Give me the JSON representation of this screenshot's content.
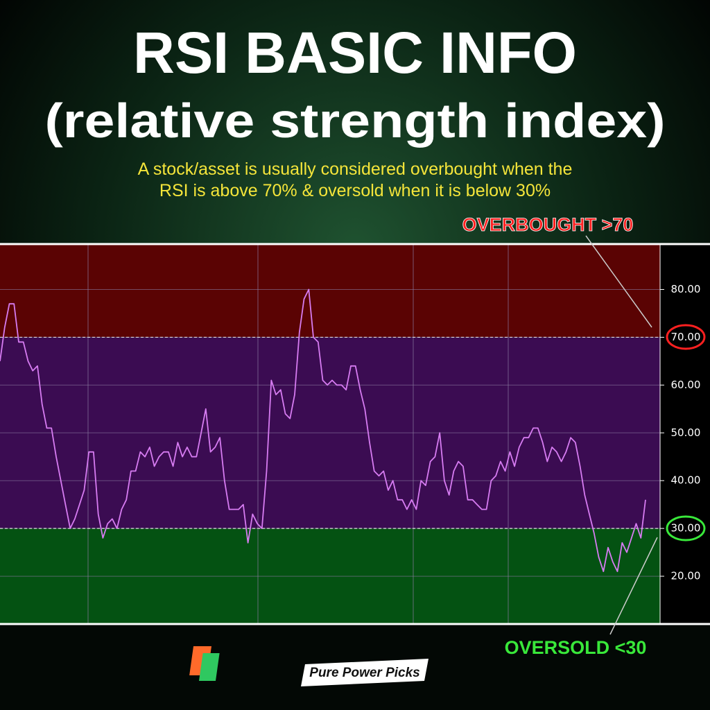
{
  "chart_data": {
    "type": "line",
    "title": "RSI BASIC INFO",
    "subtitle": "(relative strength index)",
    "description": [
      "A stock/asset is usually considered overbought when the",
      "RSI is above 70% & oversold when it is below 30%"
    ],
    "annotations": {
      "overbought": "OVERBOUGHT >70",
      "oversold": "OVERSOLD <30"
    },
    "brand": "Pure Power Picks",
    "ylim": [
      10,
      89.5
    ],
    "yticks": [
      {
        "value": 20,
        "label": "20.00"
      },
      {
        "value": 30,
        "label": "30.00"
      },
      {
        "value": 40,
        "label": "40.00"
      },
      {
        "value": 50,
        "label": "50.00"
      },
      {
        "value": 60,
        "label": "60.00"
      },
      {
        "value": 70,
        "label": "70.00"
      },
      {
        "value": 80,
        "label": "80.00"
      }
    ],
    "thresholds": [
      30,
      70
    ],
    "zone_colors": {
      "above": "#5a0303",
      "middle": "#3b0c52",
      "below": "#045212"
    },
    "color": "#d77cf2",
    "values": [
      65,
      72,
      77,
      77,
      69,
      69,
      65,
      63,
      64,
      56,
      51,
      51,
      45,
      40,
      35,
      30,
      32,
      35,
      38,
      46,
      46,
      33,
      28,
      31,
      32,
      30,
      34,
      36,
      42,
      42,
      46,
      45,
      47,
      43,
      45,
      46,
      46,
      43,
      48,
      45,
      47,
      45,
      45,
      50,
      55,
      46,
      47,
      49,
      40,
      34,
      34,
      34,
      35,
      27,
      33,
      31,
      30,
      42,
      61,
      58,
      59,
      54,
      53,
      58,
      71,
      78,
      80,
      70,
      69,
      61,
      60,
      61,
      60,
      60,
      59,
      64,
      64,
      59,
      55,
      48,
      42,
      41,
      42,
      38,
      40,
      36,
      36,
      34,
      36,
      34,
      40,
      39,
      44,
      45,
      50,
      40,
      37,
      42,
      44,
      43,
      36,
      36,
      35,
      34,
      34,
      40,
      41,
      44,
      42,
      46,
      43,
      47,
      49,
      49,
      51,
      51,
      48,
      44,
      47,
      46,
      44,
      46,
      49,
      48,
      43,
      37,
      33,
      29,
      24,
      21,
      26,
      23,
      21,
      27,
      25,
      28,
      31,
      28,
      36
    ]
  }
}
